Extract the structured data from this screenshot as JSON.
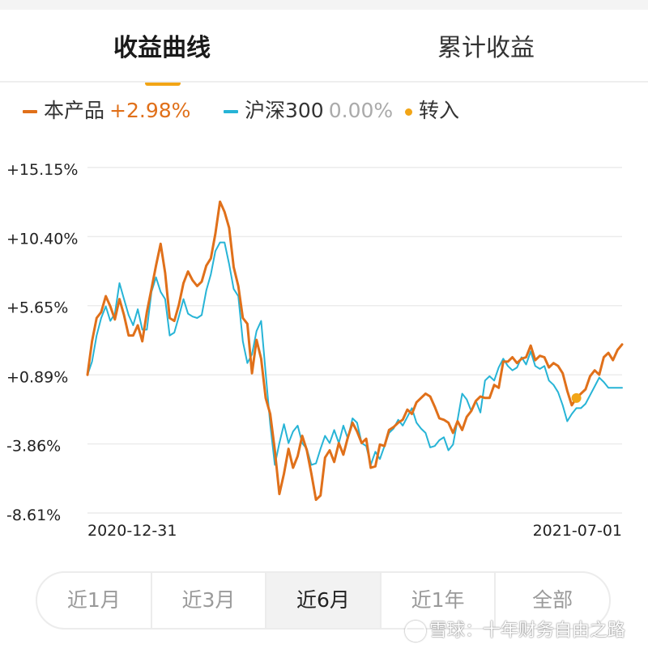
{
  "tabs": {
    "items": [
      {
        "label": "收益曲线",
        "active": true
      },
      {
        "label": "累计收益",
        "active": false
      }
    ]
  },
  "legend": {
    "product": {
      "name": "本产品",
      "value": "+2.98%",
      "color": "#e0701a"
    },
    "index": {
      "name": "沪深300",
      "value": "0.00%",
      "color": "#27b4d6",
      "value_color": "#aaaaaa"
    },
    "transfer": {
      "name": "转入",
      "color": "#f2a516"
    }
  },
  "chart_data": {
    "type": "line",
    "y_ticks": [
      "+15.15%",
      "+10.40%",
      "+5.65%",
      "+0.89%",
      "-3.86%",
      "-8.61%"
    ],
    "y_tick_values": [
      15.15,
      10.4,
      5.65,
      0.89,
      -3.86,
      -8.61
    ],
    "ylim": [
      -8.61,
      15.15
    ],
    "x_start_label": "2020-12-31",
    "x_end_label": "2021-07-01",
    "grid": true,
    "series": [
      {
        "name": "本产品",
        "color": "#e0701a",
        "values": [
          0.89,
          3.2,
          4.8,
          5.2,
          6.3,
          5.6,
          4.7,
          6.1,
          5.0,
          3.6,
          3.6,
          4.3,
          3.2,
          5.2,
          6.8,
          8.4,
          9.9,
          7.9,
          4.8,
          4.6,
          5.7,
          7.2,
          8.0,
          7.4,
          7.0,
          7.3,
          8.4,
          8.9,
          10.6,
          12.8,
          12.1,
          11.0,
          8.3,
          7.0,
          4.8,
          4.4,
          1.0,
          3.3,
          2.0,
          -0.7,
          -1.8,
          -4.3,
          -7.3,
          -5.9,
          -4.2,
          -5.5,
          -4.7,
          -3.3,
          -4.3,
          -5.9,
          -7.7,
          -7.4,
          -4.8,
          -4.3,
          -5.1,
          -3.8,
          -4.6,
          -3.4,
          -2.4,
          -3.0,
          -3.8,
          -3.5,
          -5.5,
          -5.4,
          -3.9,
          -4.0,
          -2.9,
          -2.7,
          -2.4,
          -2.2,
          -1.5,
          -1.8,
          -1.0,
          -0.7,
          -0.4,
          -0.6,
          -1.3,
          -2.1,
          -2.2,
          -2.4,
          -3.1,
          -2.3,
          -2.9,
          -2.0,
          -1.6,
          -0.9,
          -0.6,
          -0.7,
          -0.7,
          0.2,
          0.0,
          1.8,
          1.8,
          2.1,
          1.7,
          2.0,
          2.1,
          2.9,
          1.9,
          2.2,
          2.1,
          1.4,
          1.7,
          1.5,
          1.0,
          -0.2,
          -1.2,
          -0.7,
          -0.4,
          -0.1,
          0.8,
          1.2,
          0.9,
          2.1,
          2.4,
          1.9,
          2.6,
          2.98
        ],
        "transfer_index": 107
      },
      {
        "name": "沪深300",
        "color": "#27b4d6",
        "values": [
          0.89,
          1.8,
          3.6,
          4.8,
          5.6,
          4.6,
          5.1,
          7.2,
          6.1,
          5.0,
          4.3,
          5.4,
          4.0,
          4.0,
          6.6,
          7.6,
          6.6,
          6.1,
          3.6,
          3.8,
          4.9,
          6.1,
          5.1,
          4.9,
          4.8,
          5.0,
          6.7,
          7.8,
          9.4,
          10.0,
          10.0,
          8.5,
          6.8,
          6.3,
          3.2,
          1.7,
          2.3,
          3.9,
          4.6,
          1.0,
          -2.5,
          -5.3,
          -3.8,
          -2.5,
          -3.8,
          -3.0,
          -2.6,
          -3.8,
          -4.2,
          -5.3,
          -5.2,
          -4.2,
          -3.3,
          -3.8,
          -2.9,
          -3.8,
          -2.6,
          -3.5,
          -2.1,
          -2.4,
          -3.8,
          -4.0,
          -5.3,
          -4.4,
          -4.9,
          -4.0,
          -3.1,
          -2.8,
          -2.2,
          -2.6,
          -2.0,
          -1.4,
          -2.4,
          -2.8,
          -3.1,
          -4.1,
          -4.0,
          -3.6,
          -3.4,
          -4.3,
          -3.9,
          -2.2,
          -0.4,
          -0.8,
          -1.6,
          -0.9,
          -1.7,
          0.5,
          0.8,
          0.5,
          1.4,
          2.0,
          1.5,
          1.2,
          1.4,
          2.1,
          1.6,
          2.5,
          1.5,
          1.3,
          1.5,
          0.5,
          0.2,
          -0.3,
          -1.2,
          -2.3,
          -1.8,
          -1.4,
          -1.4,
          -1.1,
          -0.5,
          0.1,
          0.7,
          0.4,
          0.0,
          0.0,
          0.0,
          0.0
        ]
      }
    ]
  },
  "ranges": {
    "items": [
      {
        "label": "近1月",
        "active": false
      },
      {
        "label": "近3月",
        "active": false
      },
      {
        "label": "近6月",
        "active": true
      },
      {
        "label": "近1年",
        "active": false
      },
      {
        "label": "全部",
        "active": false
      }
    ]
  },
  "watermark": {
    "text": "雪球：十年财务自由之路"
  }
}
